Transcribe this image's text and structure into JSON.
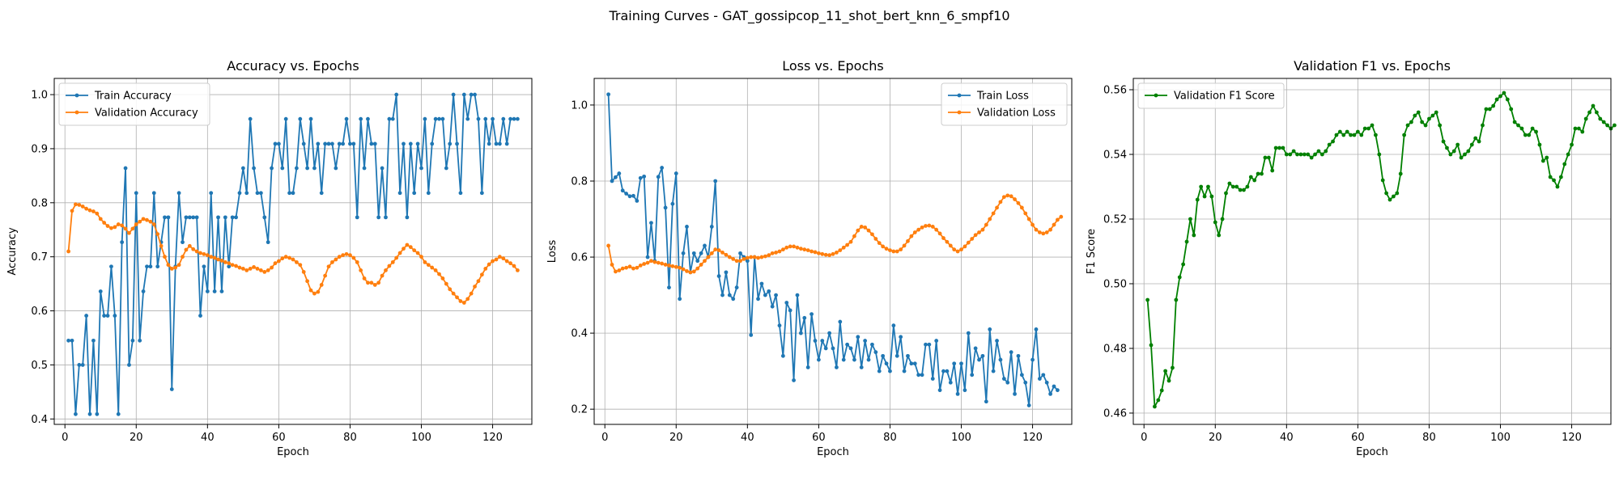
{
  "figure": {
    "title": "Training Curves - GAT_gossipcop_11_shot_bert_knn_6_smpf10"
  },
  "chart_data": [
    {
      "type": "line",
      "title": "Accuracy vs. Epochs",
      "xlabel": "Epoch",
      "ylabel": "Accuracy",
      "xlim": [
        -3,
        131
      ],
      "ylim": [
        0.39,
        1.03
      ],
      "xticks": [
        0,
        20,
        40,
        60,
        80,
        100,
        120
      ],
      "yticks": [
        0.4,
        0.5,
        0.6,
        0.7,
        0.8,
        0.9,
        1.0
      ],
      "ytick_labels": [
        "0.4",
        "0.5",
        "0.6",
        "0.7",
        "0.8",
        "0.9",
        "1.0"
      ],
      "grid": true,
      "legend_position": "upper-left",
      "series": [
        {
          "name": "Train Accuracy",
          "color": "#1f77b4",
          "values": [
            0.545,
            0.545,
            0.409,
            0.5,
            0.5,
            0.591,
            0.409,
            0.545,
            0.409,
            0.636,
            0.591,
            0.591,
            0.682,
            0.591,
            0.409,
            0.727,
            0.864,
            0.5,
            0.545,
            0.818,
            0.545,
            0.636,
            0.682,
            0.682,
            0.818,
            0.682,
            0.727,
            0.773,
            0.773,
            0.455,
            0.682,
            0.818,
            0.727,
            0.773,
            0.773,
            0.773,
            0.773,
            0.591,
            0.682,
            0.636,
            0.818,
            0.636,
            0.773,
            0.636,
            0.773,
            0.682,
            0.773,
            0.773,
            0.818,
            0.864,
            0.818,
            0.955,
            0.864,
            0.818,
            0.818,
            0.773,
            0.727,
            0.864,
            0.909,
            0.909,
            0.864,
            0.955,
            0.818,
            0.818,
            0.864,
            0.955,
            0.909,
            0.864,
            0.955,
            0.864,
            0.909,
            0.818,
            0.909,
            0.909,
            0.909,
            0.864,
            0.909,
            0.909,
            0.955,
            0.909,
            0.909,
            0.773,
            0.955,
            0.864,
            0.955,
            0.909,
            0.909,
            0.773,
            0.864,
            0.773,
            0.955,
            0.955,
            1.0,
            0.818,
            0.909,
            0.773,
            0.909,
            0.818,
            0.909,
            0.864,
            0.955,
            0.818,
            0.909,
            0.955,
            0.955,
            0.955,
            0.864,
            0.909,
            1.0,
            0.909,
            0.818,
            1.0,
            0.955,
            1.0,
            1.0,
            0.955,
            0.818,
            0.955,
            0.909,
            0.955,
            0.909,
            0.909,
            0.955,
            0.909,
            0.955,
            0.955,
            0.955
          ]
        },
        {
          "name": "Validation Accuracy",
          "color": "#ff7f0e",
          "values": [
            0.71,
            0.785,
            0.797,
            0.796,
            0.793,
            0.789,
            0.786,
            0.784,
            0.78,
            0.77,
            0.763,
            0.757,
            0.753,
            0.755,
            0.76,
            0.758,
            0.752,
            0.744,
            0.752,
            0.76,
            0.765,
            0.77,
            0.768,
            0.765,
            0.76,
            0.742,
            0.72,
            0.7,
            0.685,
            0.678,
            0.68,
            0.685,
            0.7,
            0.713,
            0.72,
            0.714,
            0.71,
            0.707,
            0.705,
            0.703,
            0.7,
            0.698,
            0.695,
            0.693,
            0.69,
            0.688,
            0.685,
            0.683,
            0.68,
            0.678,
            0.675,
            0.678,
            0.681,
            0.678,
            0.675,
            0.672,
            0.675,
            0.68,
            0.688,
            0.692,
            0.697,
            0.7,
            0.698,
            0.695,
            0.69,
            0.685,
            0.672,
            0.655,
            0.638,
            0.632,
            0.635,
            0.648,
            0.665,
            0.682,
            0.69,
            0.695,
            0.7,
            0.703,
            0.705,
            0.703,
            0.698,
            0.69,
            0.675,
            0.66,
            0.652,
            0.652,
            0.648,
            0.652,
            0.665,
            0.675,
            0.683,
            0.69,
            0.698,
            0.707,
            0.715,
            0.722,
            0.718,
            0.712,
            0.707,
            0.7,
            0.69,
            0.685,
            0.68,
            0.675,
            0.668,
            0.66,
            0.65,
            0.64,
            0.632,
            0.625,
            0.618,
            0.615,
            0.622,
            0.632,
            0.645,
            0.655,
            0.667,
            0.678,
            0.686,
            0.692,
            0.695,
            0.7,
            0.697,
            0.692,
            0.688,
            0.683,
            0.675
          ]
        }
      ]
    },
    {
      "type": "line",
      "title": "Loss vs. Epochs",
      "xlabel": "Epoch",
      "ylabel": "Loss",
      "xlim": [
        -3,
        131
      ],
      "ylim": [
        0.16,
        1.07
      ],
      "xticks": [
        0,
        20,
        40,
        60,
        80,
        100,
        120
      ],
      "yticks": [
        0.2,
        0.4,
        0.6,
        0.8,
        1.0
      ],
      "ytick_labels": [
        "0.2",
        "0.4",
        "0.6",
        "0.8",
        "1.0"
      ],
      "grid": true,
      "legend_position": "upper-right",
      "series": [
        {
          "name": "Train Loss",
          "color": "#1f77b4",
          "values": [
            1.028,
            0.8,
            0.81,
            0.82,
            0.775,
            0.767,
            0.76,
            0.761,
            0.748,
            0.808,
            0.812,
            0.6,
            0.69,
            0.59,
            0.811,
            0.835,
            0.73,
            0.52,
            0.74,
            0.82,
            0.49,
            0.61,
            0.68,
            0.56,
            0.61,
            0.59,
            0.61,
            0.63,
            0.6,
            0.68,
            0.8,
            0.55,
            0.5,
            0.56,
            0.5,
            0.49,
            0.52,
            0.61,
            0.6,
            0.59,
            0.395,
            0.6,
            0.49,
            0.53,
            0.5,
            0.51,
            0.47,
            0.5,
            0.42,
            0.34,
            0.48,
            0.46,
            0.276,
            0.5,
            0.4,
            0.44,
            0.31,
            0.45,
            0.38,
            0.33,
            0.38,
            0.36,
            0.4,
            0.36,
            0.31,
            0.43,
            0.33,
            0.37,
            0.36,
            0.33,
            0.39,
            0.31,
            0.38,
            0.33,
            0.37,
            0.35,
            0.3,
            0.34,
            0.32,
            0.3,
            0.42,
            0.34,
            0.39,
            0.3,
            0.34,
            0.32,
            0.32,
            0.29,
            0.29,
            0.37,
            0.37,
            0.28,
            0.38,
            0.25,
            0.3,
            0.3,
            0.27,
            0.32,
            0.24,
            0.32,
            0.25,
            0.4,
            0.29,
            0.36,
            0.33,
            0.34,
            0.22,
            0.41,
            0.3,
            0.38,
            0.33,
            0.28,
            0.27,
            0.35,
            0.24,
            0.34,
            0.29,
            0.27,
            0.21,
            0.33,
            0.41,
            0.28,
            0.29,
            0.27,
            0.24,
            0.26,
            0.25
          ]
        },
        {
          "name": "Validation Loss",
          "color": "#ff7f0e",
          "values": [
            0.63,
            0.58,
            0.562,
            0.565,
            0.57,
            0.572,
            0.575,
            0.57,
            0.572,
            0.578,
            0.582,
            0.585,
            0.59,
            0.587,
            0.585,
            0.583,
            0.58,
            0.578,
            0.576,
            0.574,
            0.572,
            0.568,
            0.563,
            0.56,
            0.562,
            0.57,
            0.58,
            0.59,
            0.6,
            0.61,
            0.62,
            0.618,
            0.612,
            0.606,
            0.6,
            0.595,
            0.59,
            0.59,
            0.595,
            0.598,
            0.6,
            0.6,
            0.598,
            0.6,
            0.602,
            0.605,
            0.61,
            0.612,
            0.615,
            0.62,
            0.625,
            0.628,
            0.628,
            0.625,
            0.622,
            0.62,
            0.618,
            0.615,
            0.613,
            0.61,
            0.608,
            0.606,
            0.605,
            0.608,
            0.612,
            0.618,
            0.625,
            0.632,
            0.64,
            0.655,
            0.67,
            0.68,
            0.678,
            0.67,
            0.66,
            0.648,
            0.637,
            0.628,
            0.622,
            0.618,
            0.615,
            0.615,
            0.62,
            0.63,
            0.642,
            0.655,
            0.665,
            0.672,
            0.678,
            0.682,
            0.683,
            0.68,
            0.672,
            0.662,
            0.65,
            0.64,
            0.63,
            0.62,
            0.615,
            0.62,
            0.628,
            0.638,
            0.648,
            0.658,
            0.665,
            0.672,
            0.685,
            0.7,
            0.715,
            0.73,
            0.745,
            0.758,
            0.762,
            0.76,
            0.752,
            0.742,
            0.73,
            0.715,
            0.7,
            0.685,
            0.672,
            0.665,
            0.662,
            0.665,
            0.672,
            0.685,
            0.698,
            0.706
          ]
        }
      ]
    },
    {
      "type": "line",
      "title": "Validation F1 vs. Epochs",
      "xlabel": "Epoch",
      "ylabel": "F1 Score",
      "xlim": [
        -3,
        131
      ],
      "ylim": [
        0.4565,
        0.5635
      ],
      "xticks": [
        0,
        20,
        40,
        60,
        80,
        100,
        120
      ],
      "yticks": [
        0.46,
        0.48,
        0.5,
        0.52,
        0.54,
        0.56
      ],
      "ytick_labels": [
        "0.46",
        "0.48",
        "0.50",
        "0.52",
        "0.54",
        "0.56"
      ],
      "grid": true,
      "legend_position": "upper-left",
      "series": [
        {
          "name": "Validation F1 Score",
          "color": "#008000",
          "values": [
            0.495,
            0.481,
            0.462,
            0.464,
            0.467,
            0.473,
            0.47,
            0.474,
            0.495,
            0.502,
            0.506,
            0.513,
            0.52,
            0.515,
            0.526,
            0.53,
            0.527,
            0.53,
            0.527,
            0.519,
            0.515,
            0.52,
            0.528,
            0.531,
            0.53,
            0.53,
            0.529,
            0.529,
            0.53,
            0.533,
            0.532,
            0.534,
            0.534,
            0.539,
            0.539,
            0.535,
            0.542,
            0.542,
            0.542,
            0.54,
            0.54,
            0.541,
            0.54,
            0.54,
            0.54,
            0.54,
            0.539,
            0.54,
            0.541,
            0.54,
            0.541,
            0.543,
            0.544,
            0.546,
            0.547,
            0.546,
            0.547,
            0.546,
            0.546,
            0.547,
            0.546,
            0.548,
            0.548,
            0.549,
            0.546,
            0.54,
            0.532,
            0.528,
            0.526,
            0.527,
            0.528,
            0.534,
            0.546,
            0.549,
            0.55,
            0.552,
            0.553,
            0.55,
            0.549,
            0.551,
            0.552,
            0.553,
            0.549,
            0.544,
            0.542,
            0.54,
            0.541,
            0.543,
            0.539,
            0.54,
            0.541,
            0.543,
            0.545,
            0.544,
            0.549,
            0.554,
            0.554,
            0.555,
            0.557,
            0.558,
            0.559,
            0.557,
            0.554,
            0.55,
            0.549,
            0.548,
            0.546,
            0.546,
            0.548,
            0.547,
            0.543,
            0.538,
            0.539,
            0.533,
            0.532,
            0.53,
            0.533,
            0.537,
            0.54,
            0.543,
            0.548,
            0.548,
            0.547,
            0.551,
            0.553,
            0.555,
            0.553,
            0.551,
            0.55,
            0.549,
            0.548,
            0.549
          ]
        }
      ]
    }
  ]
}
